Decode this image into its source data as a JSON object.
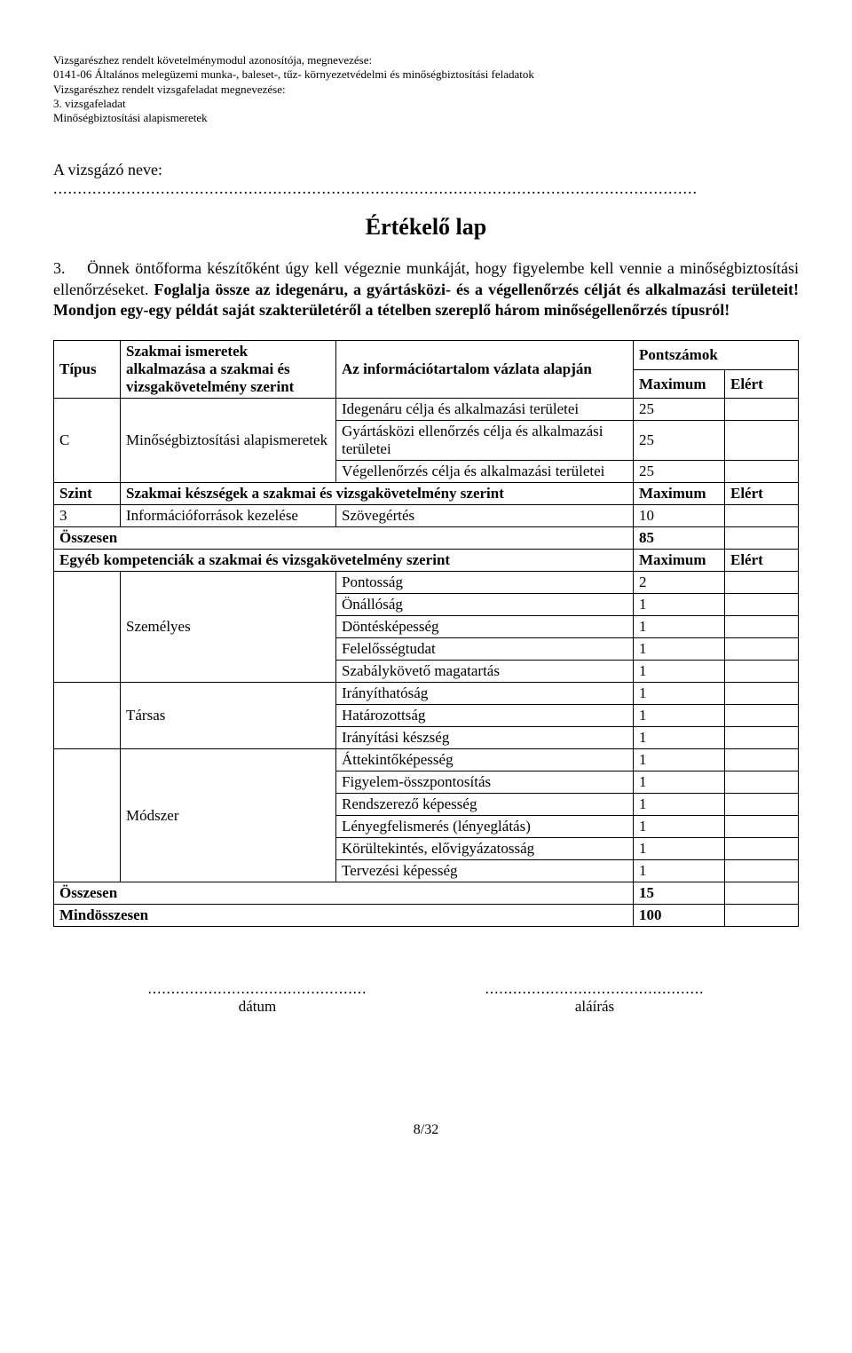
{
  "header": {
    "line1": "Vizsgarészhez rendelt követelménymodul azonosítója, megnevezése:",
    "line2": "0141-06 Általános melegüzemi munka-, baleset-, tűz-  környezetvédelmi és minőségbiztosítási feladatok",
    "line3": "Vizsgarészhez rendelt vizsgafeladat megnevezése:",
    "line4": "3. vizsgafeladat",
    "line5": "Minőségbiztosítási alapismeretek"
  },
  "name_label": "A vizsgázó neve:",
  "dots_long": "....................................................................................................................................",
  "title": "Értékelő lap",
  "task_number": "3.",
  "task_body_plain": "Önnek öntőforma készítőként úgy kell végeznie munkáját, hogy figyelembe kell vennie a minőségbiztosítási ellenőrzéseket. ",
  "task_body_bold": "Foglalja össze az idegenáru, a gyártásközi- és a végellenőrzés célját és alkalmazási területeit! Mondjon egy-egy példát saját szakterületéről a tételben szereplő három minőségellenőrzés típusról!",
  "table": {
    "h_tipus": "Típus",
    "h_szakmai": "Szakmai ismeretek alkalmazása a szakmai és vizsgakövetelmény szerint",
    "h_info": "Az információtartalom vázlata alapján",
    "h_pontszamok": "Pontszámok",
    "h_max": "Maximum",
    "h_elert": "Elért",
    "c_label": "C",
    "c_text": "Minőségbiztosítási alapismeretek",
    "c_rows": [
      {
        "item": "Idegenáru célja és alkalmazási területei",
        "max": "25"
      },
      {
        "item": "Gyártásközi ellenőrzés célja és alkalmazási területei",
        "max": "25"
      },
      {
        "item": "Végellenőrzés célja és alkalmazási területei",
        "max": "25"
      }
    ],
    "szint_label": "Szint",
    "szint_header": "Szakmai készségek a szakmai és vizsgakövetelmény szerint",
    "szint_rows": [
      {
        "lvl": "3",
        "name": "Információforrások kezelése",
        "item": "Szövegértés",
        "max": "10"
      }
    ],
    "osszesen": "Összesen",
    "osszesen1_max": "85",
    "egyeb_header": "Egyéb kompetenciák a szakmai és vizsgakövetelmény szerint",
    "groups": [
      {
        "name": "Személyes",
        "rows": [
          {
            "item": "Pontosság",
            "max": "2"
          },
          {
            "item": "Önállóság",
            "max": "1"
          },
          {
            "item": "Döntésképesség",
            "max": "1"
          },
          {
            "item": "Felelősségtudat",
            "max": "1"
          },
          {
            "item": "Szabálykövető magatartás",
            "max": "1"
          }
        ]
      },
      {
        "name": "Társas",
        "rows": [
          {
            "item": "Irányíthatóság",
            "max": "1"
          },
          {
            "item": "Határozottság",
            "max": "1"
          },
          {
            "item": "Irányítási készség",
            "max": "1"
          }
        ]
      },
      {
        "name": "Módszer",
        "rows": [
          {
            "item": "Áttekintőképesség",
            "max": "1"
          },
          {
            "item": "Figyelem-összpontosítás",
            "max": "1"
          },
          {
            "item": "Rendszerező képesség",
            "max": "1"
          },
          {
            "item": "Lényegfelismerés (lényeglátás)",
            "max": "1"
          },
          {
            "item": "Körültekintés, elővigyázatosság",
            "max": "1"
          },
          {
            "item": "Tervezési képesség",
            "max": "1"
          }
        ]
      }
    ],
    "osszesen2_max": "15",
    "mindosszesen": "Mindösszesen",
    "mindosszesen_max": "100"
  },
  "sig": {
    "dots": "...............................................",
    "datum": "dátum",
    "alairas": "aláírás"
  },
  "page_footer": "8/32"
}
